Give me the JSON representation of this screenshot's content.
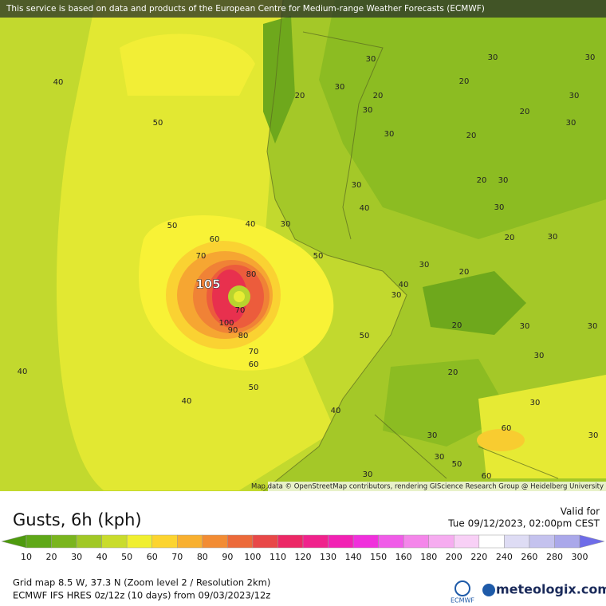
{
  "banner": "This service is based on data and products of the European Centre for Medium-range Weather Forecasts (ECMWF)",
  "map": {
    "labels": [
      "40",
      "50",
      "40",
      "50",
      "30",
      "60",
      "50",
      "70",
      "105",
      "80",
      "70",
      "100",
      "90",
      "80",
      "70",
      "60",
      "50",
      "50",
      "40",
      "40",
      "40",
      "30",
      "30",
      "30",
      "20",
      "30",
      "20",
      "30",
      "20",
      "30",
      "30",
      "20",
      "30",
      "20",
      "30",
      "20",
      "30",
      "40",
      "30",
      "20",
      "30",
      "30",
      "20",
      "40",
      "30",
      "20",
      "30",
      "30",
      "30",
      "20",
      "30",
      "60",
      "30",
      "30",
      "50",
      "30",
      "30",
      "60"
    ],
    "attribution": "Map data © OpenStreetMap contributors, rendering GIScience Research Group @ Heidelberg University"
  },
  "legend": {
    "title": "Gusts, 6h (kph)",
    "valid_label": "Valid for",
    "valid_time": "Tue 09/12/2023, 02:00pm CEST",
    "ticks": [
      10,
      20,
      30,
      40,
      50,
      60,
      70,
      80,
      90,
      100,
      110,
      120,
      130,
      140,
      150,
      160,
      180,
      200,
      220,
      240,
      260,
      280,
      300
    ],
    "colors": [
      "#4e9a0e",
      "#5fa818",
      "#7ab51e",
      "#a1c826",
      "#c9dc2c",
      "#f0ef30",
      "#fcd430",
      "#f8b030",
      "#f28c34",
      "#ec6a3a",
      "#e84848",
      "#ec2866",
      "#f0228c",
      "#f222b4",
      "#f030dc",
      "#f05ce8",
      "#f486ea",
      "#f6acf0",
      "#f8d0f6",
      "#ffffff",
      "#dedcf4",
      "#c4c2ee",
      "#aaa8ea",
      "#8c8ae8",
      "#6e6ce8"
    ]
  },
  "footer": {
    "grid_info": "Grid map 8.5 W, 37.3 N (Zoom level 2 / Resolution 2km)",
    "model_info": "ECMWF IFS HRES 0z/12z (10 days) from 09/03/2023/12z",
    "ecmwf_logo": "ECMWF",
    "brand": "meteologix.com"
  }
}
